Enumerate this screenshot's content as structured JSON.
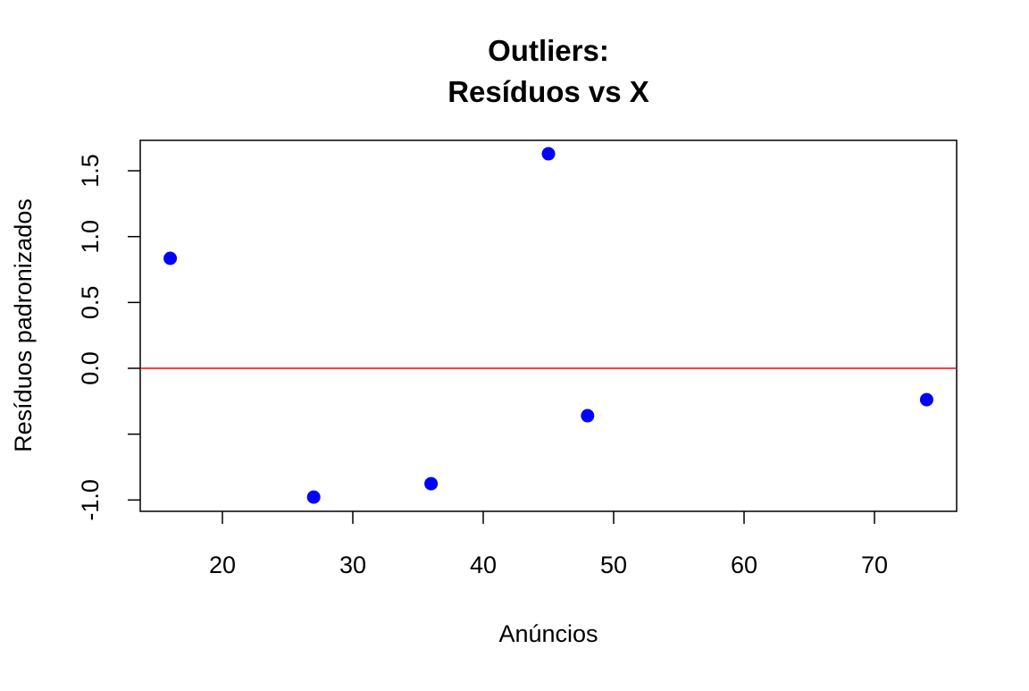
{
  "chart_data": {
    "type": "scatter",
    "title": "Outliers:",
    "subtitle": "Resíduos vs X",
    "x_label": "Anúncios",
    "y_label": "Resíduos padronizados",
    "series": [
      {
        "color": "#0000ff",
        "x": [
          16,
          27,
          36,
          45,
          48,
          74
        ],
        "values": [
          0.835,
          -0.978,
          -0.876,
          1.629,
          -0.36,
          -0.238
        ]
      }
    ],
    "xlim": [
      13.7,
      76.3
    ],
    "xticks": [
      20,
      30,
      40,
      50,
      60,
      70
    ],
    "ylim": [
      -1.086,
      1.731
    ],
    "yticks": [
      {
        "value": -1.0,
        "label": "-1.0"
      },
      {
        "value": -0.5,
        "label": null
      },
      {
        "value": 0.0,
        "label": "0.0"
      },
      0.5,
      {
        "value": 1.0,
        "label": "1.0"
      },
      1.5
    ],
    "hline": {
      "value": 0,
      "color": "#ff0000"
    }
  }
}
